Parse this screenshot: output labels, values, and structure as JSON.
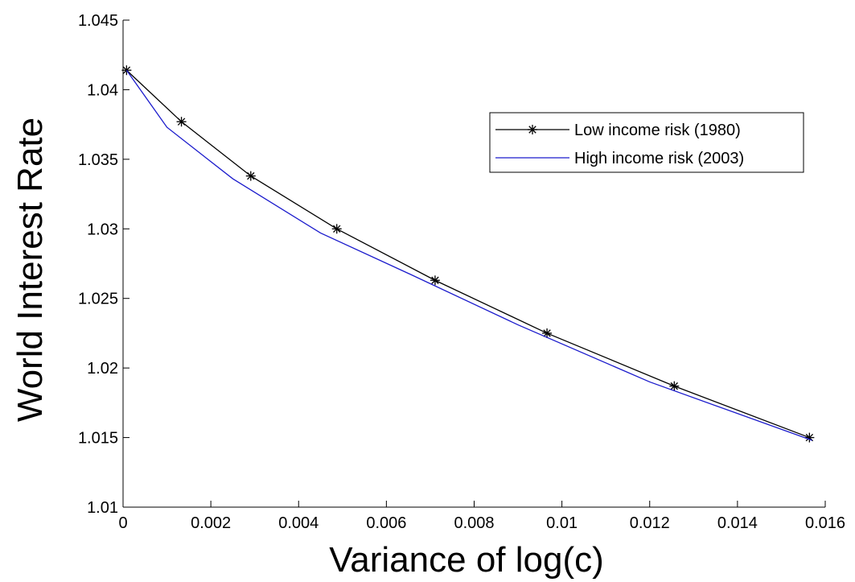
{
  "chart_data": {
    "type": "line",
    "title": "",
    "xlabel": "Variance of log(c)",
    "ylabel": "World Interest Rate",
    "xlim": [
      0,
      0.016
    ],
    "ylim": [
      1.01,
      1.045
    ],
    "xticks": [
      0,
      0.002,
      0.004,
      0.006,
      0.008,
      0.01,
      0.012,
      0.014,
      0.016
    ],
    "xtick_labels": [
      "0",
      "0.002",
      "0.004",
      "0.006",
      "0.008",
      "0.01",
      "0.012",
      "0.014",
      "0.016"
    ],
    "yticks": [
      1.01,
      1.015,
      1.02,
      1.025,
      1.03,
      1.035,
      1.04,
      1.045
    ],
    "ytick_labels": [
      "1.01",
      "1.015",
      "1.02",
      "1.025",
      "1.03",
      "1.035",
      "1.04",
      "1.045"
    ],
    "grid": false,
    "legend_position": "top-right",
    "series": [
      {
        "name": "Low income risk (1980)",
        "color": "#000000",
        "marker": "asterisk",
        "x": [
          8e-05,
          0.00133,
          0.00291,
          0.00487,
          0.00711,
          0.00966,
          0.01256,
          0.01564
        ],
        "y": [
          1.0414,
          1.0377,
          1.0338,
          1.03,
          1.0263,
          1.0225,
          1.0187,
          1.015
        ]
      },
      {
        "name": "High income risk (2003)",
        "color": "#1a1acc",
        "marker": "none",
        "x": [
          8e-05,
          0.001,
          0.0025,
          0.0045,
          0.0065,
          0.009,
          0.012,
          0.0157
        ],
        "y": [
          1.0414,
          1.0373,
          1.0336,
          1.0297,
          1.0268,
          1.0231,
          1.019,
          1.0148
        ]
      }
    ]
  }
}
